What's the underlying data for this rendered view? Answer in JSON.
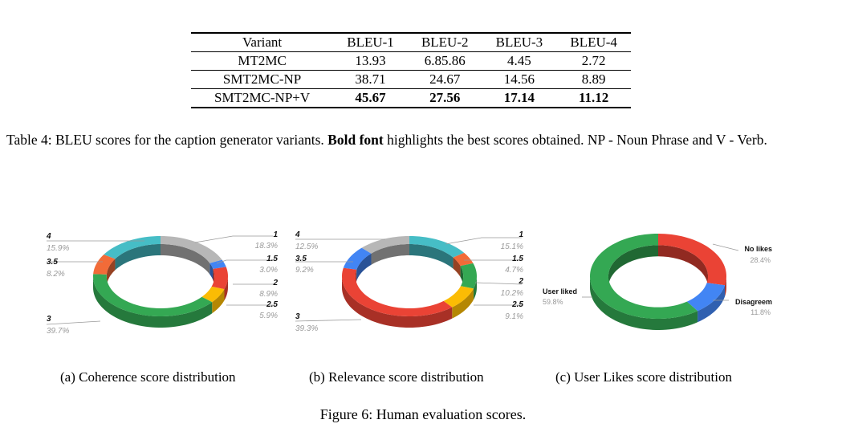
{
  "table": {
    "headers": [
      "Variant",
      "BLEU-1",
      "BLEU-2",
      "BLEU-3",
      "BLEU-4"
    ],
    "rows": [
      {
        "cells": [
          "MT2MC",
          "13.93",
          "6.85.86",
          "4.45",
          "2.72"
        ],
        "bold": false
      },
      {
        "cells": [
          "SMT2MC-NP",
          "38.71",
          "24.67",
          "14.56",
          "8.89"
        ],
        "bold": false
      },
      {
        "cells": [
          "SMT2MC-NP+V",
          "45.67",
          "27.56",
          "17.14",
          "11.12"
        ],
        "bold": true
      }
    ],
    "caption": {
      "prefix": "Table 4: BLEU scores for the caption generator variants. ",
      "bold": "Bold font",
      "suffix": " highlights the best scores obtained. NP - Noun Phrase and V - Verb."
    }
  },
  "colors": {
    "grey": "#b7b7b7",
    "blue": "#4285f4",
    "red": "#ea4335",
    "yellow": "#fbbc04",
    "green": "#34a853",
    "orange": "#f26b38",
    "teal": "#46bdc6"
  },
  "chart_data": [
    {
      "type": "pie",
      "title": "Coherence score distribution",
      "subcaption": "(a) Coherence score distribution",
      "slices": [
        {
          "label": "1",
          "pct_label": "18.3%",
          "value": 18.3,
          "color": "#b7b7b7"
        },
        {
          "label": "1.5",
          "pct_label": "3.0%",
          "value": 3.0,
          "color": "#4285f4"
        },
        {
          "label": "2",
          "pct_label": "8.9%",
          "value": 8.9,
          "color": "#ea4335"
        },
        {
          "label": "2.5",
          "pct_label": "5.9%",
          "value": 5.9,
          "color": "#fbbc04"
        },
        {
          "label": "3",
          "pct_label": "39.7%",
          "value": 39.7,
          "color": "#34a853"
        },
        {
          "label": "3.5",
          "pct_label": "8.2%",
          "value": 8.2,
          "color": "#f26b38"
        },
        {
          "label": "4",
          "pct_label": "15.9%",
          "value": 15.9,
          "color": "#46bdc6"
        }
      ]
    },
    {
      "type": "pie",
      "title": "Relevance score distribution",
      "subcaption": "(b) Relevance score distribution",
      "slices": [
        {
          "label": "1",
          "pct_label": "15.1%",
          "value": 15.1,
          "color": "#46bdc6"
        },
        {
          "label": "1.5",
          "pct_label": "4.7%",
          "value": 4.7,
          "color": "#f26b38"
        },
        {
          "label": "2",
          "pct_label": "10.2%",
          "value": 10.2,
          "color": "#34a853"
        },
        {
          "label": "2.5",
          "pct_label": "9.1%",
          "value": 9.1,
          "color": "#fbbc04"
        },
        {
          "label": "3",
          "pct_label": "39.3%",
          "value": 39.3,
          "color": "#ea4335"
        },
        {
          "label": "3.5",
          "pct_label": "9.2%",
          "value": 9.2,
          "color": "#4285f4"
        },
        {
          "label": "4",
          "pct_label": "12.5%",
          "value": 12.5,
          "color": "#b7b7b7"
        }
      ]
    },
    {
      "type": "pie",
      "title": "User Likes score distribution",
      "subcaption": "(c) User Likes score distribution",
      "slices": [
        {
          "label": "No likes",
          "pct_label": "28.4%",
          "value": 28.4,
          "color": "#ea4335"
        },
        {
          "label": "Disagreem",
          "pct_label": "11.8%",
          "value": 11.8,
          "color": "#4285f4"
        },
        {
          "label": "User liked",
          "pct_label": "59.8%",
          "value": 59.8,
          "color": "#34a853"
        }
      ]
    }
  ],
  "figure_caption": "Figure 6: Human evaluation scores."
}
